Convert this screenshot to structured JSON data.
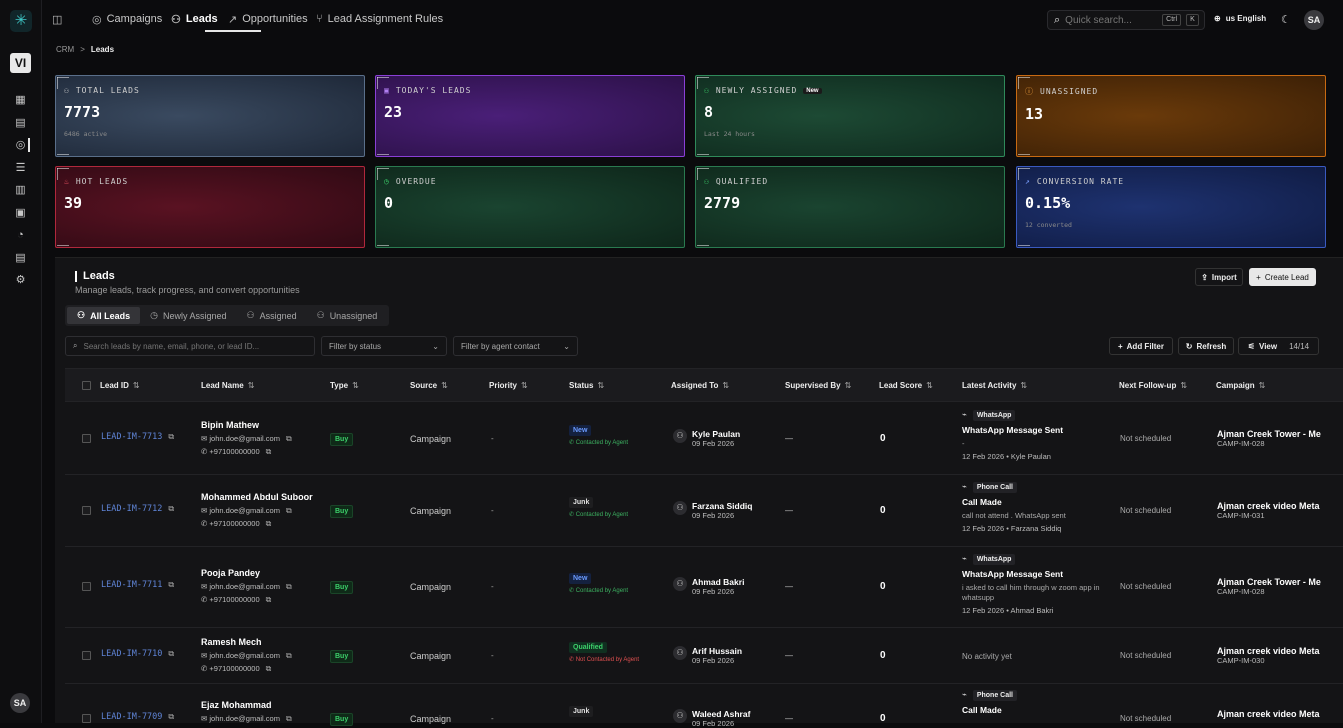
{
  "rail": {
    "logo": "✳",
    "workspace": "VI",
    "user": "SA"
  },
  "nav": {
    "tabs": [
      {
        "label": "Campaigns"
      },
      {
        "label": "Leads"
      },
      {
        "label": "Opportunities"
      },
      {
        "label": "Lead Assignment Rules"
      }
    ],
    "search_placeholder": "Quick search...",
    "kbd_ctrl": "Ctrl",
    "kbd_k": "K",
    "language": "us English",
    "user": "SA"
  },
  "breadcrumb": {
    "root": "CRM",
    "sep": ">",
    "current": "Leads"
  },
  "stats": [
    {
      "label": "TOTAL LEADS",
      "value": "7773",
      "sub": "6486 active",
      "icon": "users-icon"
    },
    {
      "label": "TODAY'S LEADS",
      "value": "23",
      "sub": "",
      "icon": "calendar-icon"
    },
    {
      "label": "NEWLY ASSIGNED",
      "value": "8",
      "sub": "Last 24 hours",
      "badge": "New",
      "icon": "user-plus-icon"
    },
    {
      "label": "UNASSIGNED",
      "value": "13",
      "sub": "",
      "icon": "alert-icon"
    },
    {
      "label": "HOT LEADS",
      "value": "39",
      "sub": "",
      "icon": "flame-icon"
    },
    {
      "label": "OVERDUE",
      "value": "0",
      "sub": "",
      "icon": "clock-icon"
    },
    {
      "label": "QUALIFIED",
      "value": "2779",
      "sub": "",
      "icon": "user-check-icon"
    },
    {
      "label": "CONVERSION RATE",
      "value": "0.15%",
      "sub": "12 converted",
      "icon": "trend-icon"
    }
  ],
  "panel": {
    "title": "Leads",
    "subtitle": "Manage leads, track progress, and convert opportunities",
    "import_label": "Import",
    "create_label": "Create Lead",
    "segments": [
      "All Leads",
      "Newly Assigned",
      "Assigned",
      "Unassigned"
    ],
    "search_placeholder": "Search leads by name, email, phone, or lead ID...",
    "filter_status": "Filter by status",
    "filter_agent": "Filter by agent contact",
    "add_filter": "Add Filter",
    "refresh": "Refresh",
    "view": "View",
    "view_count": "14/14"
  },
  "columns": [
    "Lead ID",
    "Lead Name",
    "Type",
    "Source",
    "Priority",
    "Status",
    "Assigned To",
    "Supervised By",
    "Lead Score",
    "Latest Activity",
    "Next Follow-up",
    "Campaign"
  ],
  "rows": [
    {
      "id": "LEAD-IM-7713",
      "name": "Bipin Mathew",
      "email": "john.doe@gmail.com",
      "phone": "+97100000000",
      "type": "Buy",
      "source": "Campaign",
      "priority": "-",
      "status": "New",
      "contact": "Contacted by Agent",
      "contact_ok": true,
      "agent": "Kyle Paulan",
      "agent_date": "09 Feb 2026",
      "supervisor": "—",
      "score": "0",
      "act_type": "WhatsApp",
      "act_title": "WhatsApp Message Sent",
      "act_desc": "-",
      "act_meta": "12 Feb 2026  •  Kyle Paulan",
      "follow": "Not scheduled",
      "campaign": "Ajman Creek Tower - Me",
      "campaign_id": "CAMP-IM-028"
    },
    {
      "id": "LEAD-IM-7712",
      "name": "Mohammed Abdul Suboor",
      "email": "john.doe@gmail.com",
      "phone": "+97100000000",
      "type": "Buy",
      "source": "Campaign",
      "priority": "-",
      "status": "Junk",
      "contact": "Contacted by Agent",
      "contact_ok": true,
      "agent": "Farzana Siddiq",
      "agent_date": "09 Feb 2026",
      "supervisor": "—",
      "score": "0",
      "act_type": "Phone Call",
      "act_title": "Call Made",
      "act_desc": "call not attend . WhatsApp sent",
      "act_meta": "12 Feb 2026  •  Farzana Siddiq",
      "follow": "Not scheduled",
      "campaign": "Ajman creek video Meta",
      "campaign_id": "CAMP-IM-031"
    },
    {
      "id": "LEAD-IM-7711",
      "name": "Pooja Pandey",
      "email": "john.doe@gmail.com",
      "phone": "+97100000000",
      "type": "Buy",
      "source": "Campaign",
      "priority": "-",
      "status": "New",
      "contact": "Contacted by Agent",
      "contact_ok": true,
      "agent": "Ahmad Bakri",
      "agent_date": "09 Feb 2026",
      "supervisor": "—",
      "score": "0",
      "act_type": "WhatsApp",
      "act_title": "WhatsApp Message Sent",
      "act_desc": "i asked to call him through w zoom app in whatsupp",
      "act_meta": "12 Feb 2026  •  Ahmad Bakri",
      "follow": "Not scheduled",
      "campaign": "Ajman Creek Tower - Me",
      "campaign_id": "CAMP-IM-028"
    },
    {
      "id": "LEAD-IM-7710",
      "name": "Ramesh Mech",
      "email": "john.doe@gmail.com",
      "phone": "+97100000000",
      "type": "Buy",
      "source": "Campaign",
      "priority": "-",
      "status": "Qualified",
      "contact": "Not Contacted by Agent",
      "contact_ok": false,
      "agent": "Arif Hussain",
      "agent_date": "09 Feb 2026",
      "supervisor": "—",
      "score": "0",
      "act_type": "",
      "act_title": "",
      "act_desc": "No activity yet",
      "act_meta": "",
      "follow": "Not scheduled",
      "campaign": "Ajman creek video Meta",
      "campaign_id": "CAMP-IM-030"
    },
    {
      "id": "LEAD-IM-7709",
      "name": "Ejaz Mohammad",
      "email": "john.doe@gmail.com",
      "phone": "+97100000000",
      "type": "Buy",
      "source": "Campaign",
      "priority": "-",
      "status": "Junk",
      "contact": "",
      "contact_ok": true,
      "agent": "Waleed Ashraf",
      "agent_date": "09 Feb 2026",
      "supervisor": "—",
      "score": "0",
      "act_type": "Phone Call",
      "act_title": "Call Made",
      "act_desc": "",
      "act_meta": "",
      "follow": "Not scheduled",
      "campaign": "Ajman creek video Meta",
      "campaign_id": ""
    }
  ],
  "colors": {
    "accent": "#5f84d6",
    "green": "#3cd06a",
    "red": "#e05050"
  }
}
